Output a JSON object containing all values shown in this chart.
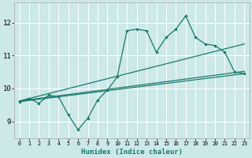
{
  "xlabel": "Humidex (Indice chaleur)",
  "background_color": "#cce8e8",
  "grid_color": "#ffffff",
  "line_color": "#1a7a6e",
  "xlim": [
    -0.5,
    23.5
  ],
  "ylim": [
    8.5,
    12.6
  ],
  "xticks": [
    0,
    1,
    2,
    3,
    4,
    5,
    6,
    7,
    8,
    9,
    10,
    11,
    12,
    13,
    14,
    15,
    16,
    17,
    18,
    19,
    20,
    21,
    22,
    23
  ],
  "yticks": [
    9,
    10,
    11,
    12
  ],
  "curve1_x": [
    0,
    1,
    2,
    3,
    4,
    5,
    6,
    7,
    8,
    9,
    10,
    11,
    12,
    13,
    14,
    15,
    16,
    17,
    18,
    19,
    20,
    21,
    22,
    23
  ],
  "curve1_y": [
    9.6,
    9.7,
    9.55,
    9.8,
    9.75,
    9.2,
    8.75,
    9.1,
    9.65,
    9.95,
    10.35,
    11.75,
    11.8,
    11.75,
    11.1,
    11.55,
    11.8,
    12.2,
    11.55,
    11.35,
    11.3,
    11.1,
    10.5,
    10.45
  ],
  "curve2_x": [
    0,
    23
  ],
  "curve2_y": [
    9.6,
    10.45
  ],
  "curve3_x": [
    0,
    23
  ],
  "curve3_y": [
    9.62,
    11.35
  ],
  "curve4_x": [
    0,
    23
  ],
  "curve4_y": [
    9.62,
    10.52
  ]
}
